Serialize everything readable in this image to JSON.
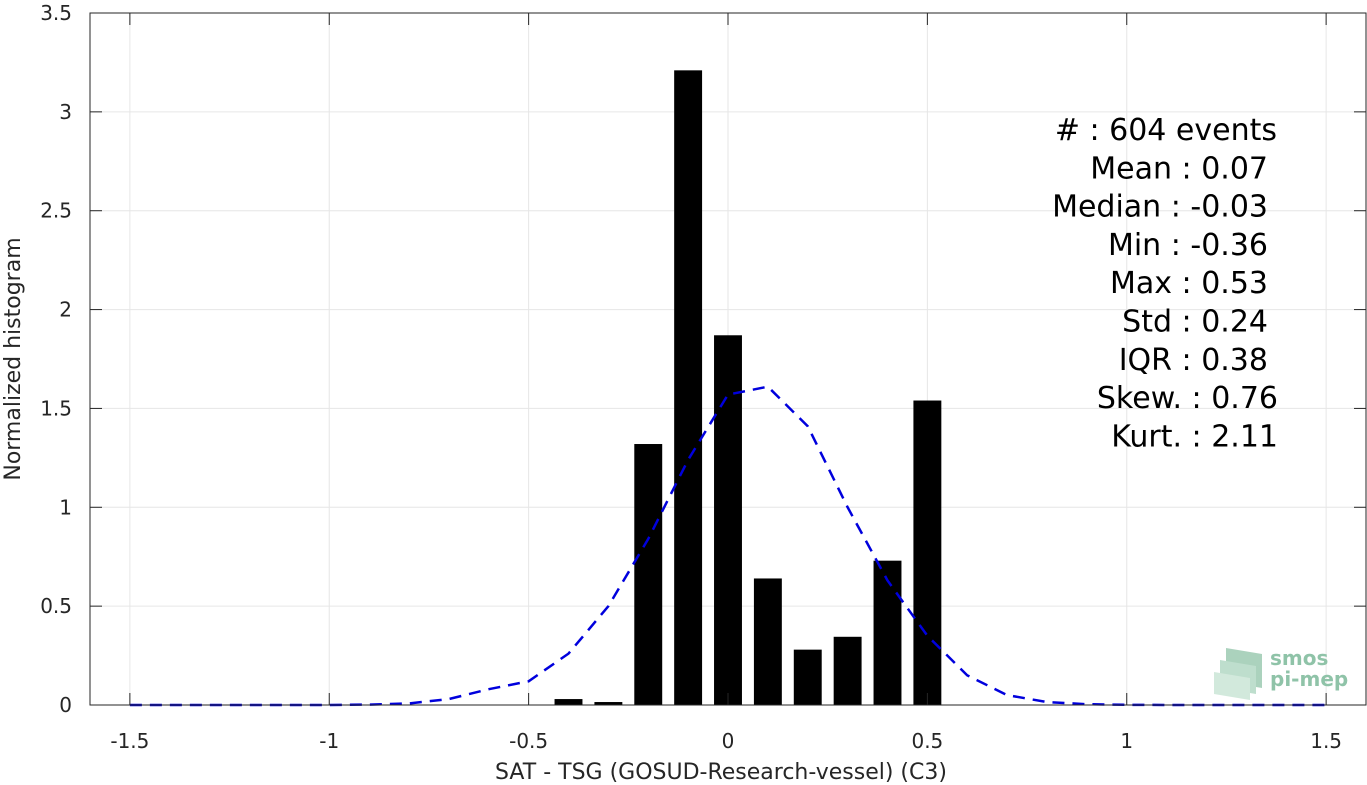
{
  "chart_data": {
    "type": "bar",
    "xlabel": "SAT - TSG (GOSUD-Research-vessel) (C3)",
    "ylabel": "Normalized histogram",
    "xlim": [
      -1.6,
      1.6
    ],
    "ylim": [
      0,
      3.5
    ],
    "x_ticks": [
      -1.5,
      -1,
      -0.5,
      0,
      0.5,
      1,
      1.5
    ],
    "x_tick_labels": [
      "-1.5",
      "-1",
      "-0.5",
      "0",
      "0.5",
      "1",
      "1.5"
    ],
    "y_ticks": [
      0,
      0.5,
      1,
      1.5,
      2,
      2.5,
      3,
      3.5
    ],
    "y_tick_labels": [
      "0",
      "0.5",
      "1",
      "1.5",
      "2",
      "2.5",
      "3",
      "3.5"
    ],
    "grid": true,
    "bar_width": 0.07,
    "bars": [
      {
        "x": -0.4,
        "y": 0.03
      },
      {
        "x": -0.3,
        "y": 0.015
      },
      {
        "x": -0.2,
        "y": 1.32
      },
      {
        "x": -0.1,
        "y": 3.21
      },
      {
        "x": 0.0,
        "y": 1.87
      },
      {
        "x": 0.1,
        "y": 0.64
      },
      {
        "x": 0.2,
        "y": 0.28
      },
      {
        "x": 0.3,
        "y": 0.345
      },
      {
        "x": 0.4,
        "y": 0.73
      },
      {
        "x": 0.5,
        "y": 1.54
      }
    ],
    "bar_color": "#000000",
    "fit_curve": {
      "style": "dashed",
      "color": "#0000dd",
      "x": [
        -1.5,
        -1.4,
        -1.3,
        -1.2,
        -1.1,
        -1.0,
        -0.9,
        -0.8,
        -0.7,
        -0.6,
        -0.5,
        -0.4,
        -0.3,
        -0.2,
        -0.1,
        0.0,
        0.1,
        0.2,
        0.3,
        0.4,
        0.5,
        0.6,
        0.7,
        0.8,
        0.9,
        1.0,
        1.1,
        1.2,
        1.3,
        1.4,
        1.5
      ],
      "y": [
        0,
        0,
        0,
        0,
        0,
        0,
        0.002,
        0.008,
        0.03,
        0.08,
        0.12,
        0.26,
        0.5,
        0.84,
        1.24,
        1.57,
        1.61,
        1.41,
        1.0,
        0.63,
        0.35,
        0.15,
        0.05,
        0.015,
        0.004,
        0.001,
        0,
        0,
        0,
        0,
        0
      ]
    },
    "stats": [
      {
        "label": "#  ",
        "value": ": 604 events"
      },
      {
        "label": "Mean ",
        "value": ": 0.07"
      },
      {
        "label": "Median ",
        "value": ": -0.03"
      },
      {
        "label": "Min ",
        "value": ": -0.36"
      },
      {
        "label": "Max ",
        "value": ": 0.53"
      },
      {
        "label": "Std ",
        "value": ": 0.24"
      },
      {
        "label": "IQR ",
        "value": ": 0.38"
      },
      {
        "label": "Skew. ",
        "value": ": 0.76"
      },
      {
        "label": "Kurt. ",
        "value": ": 2.11"
      }
    ]
  },
  "logo": {
    "line1": "smos",
    "line2": "pi-mep"
  }
}
